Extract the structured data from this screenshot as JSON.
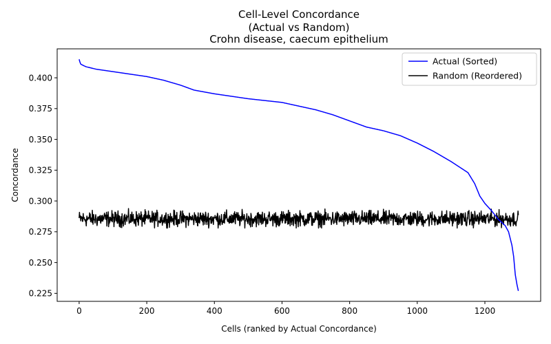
{
  "chart_data": {
    "type": "line",
    "title": [
      "Cell-Level Concordance",
      "(Actual vs Random)",
      "Crohn disease, caecum epithelium"
    ],
    "xlabel": "Cells (ranked by Actual Concordance)",
    "ylabel": "Concordance",
    "xlim": [
      -65,
      1365
    ],
    "ylim": [
      0.2185,
      0.4235
    ],
    "xticks": [
      0,
      200,
      400,
      600,
      800,
      1000,
      1200
    ],
    "yticks": [
      0.225,
      0.25,
      0.275,
      0.3,
      0.325,
      0.35,
      0.375,
      0.4
    ],
    "xtick_labels": [
      "0",
      "200",
      "400",
      "600",
      "800",
      "1000",
      "1200"
    ],
    "ytick_labels": [
      "0.225",
      "0.250",
      "0.275",
      "0.300",
      "0.325",
      "0.350",
      "0.375",
      "0.400"
    ],
    "grid": false,
    "legend_position": "top-right",
    "n_points": 1300,
    "series": [
      {
        "name": "Actual (Sorted)",
        "color": "#0000ff",
        "style": "monotone-decreasing",
        "anchors_x": [
          0,
          2,
          5,
          20,
          50,
          100,
          150,
          200,
          250,
          300,
          340,
          400,
          500,
          600,
          650,
          700,
          750,
          800,
          850,
          900,
          950,
          1000,
          1050,
          1100,
          1150,
          1170,
          1185,
          1200,
          1220,
          1240,
          1260,
          1270,
          1280,
          1285,
          1290,
          1295,
          1299
        ],
        "anchors_y": [
          0.415,
          0.413,
          0.411,
          0.409,
          0.407,
          0.405,
          0.403,
          0.401,
          0.398,
          0.394,
          0.39,
          0.387,
          0.383,
          0.38,
          0.377,
          0.374,
          0.37,
          0.365,
          0.36,
          0.357,
          0.353,
          0.347,
          0.34,
          0.332,
          0.323,
          0.314,
          0.304,
          0.298,
          0.292,
          0.285,
          0.28,
          0.275,
          0.264,
          0.255,
          0.24,
          0.232,
          0.227
        ]
      },
      {
        "name": "Random (Reordered)",
        "color": "#000000",
        "style": "noisy",
        "mean": 0.2855,
        "min": 0.278,
        "max": 0.295
      }
    ]
  }
}
